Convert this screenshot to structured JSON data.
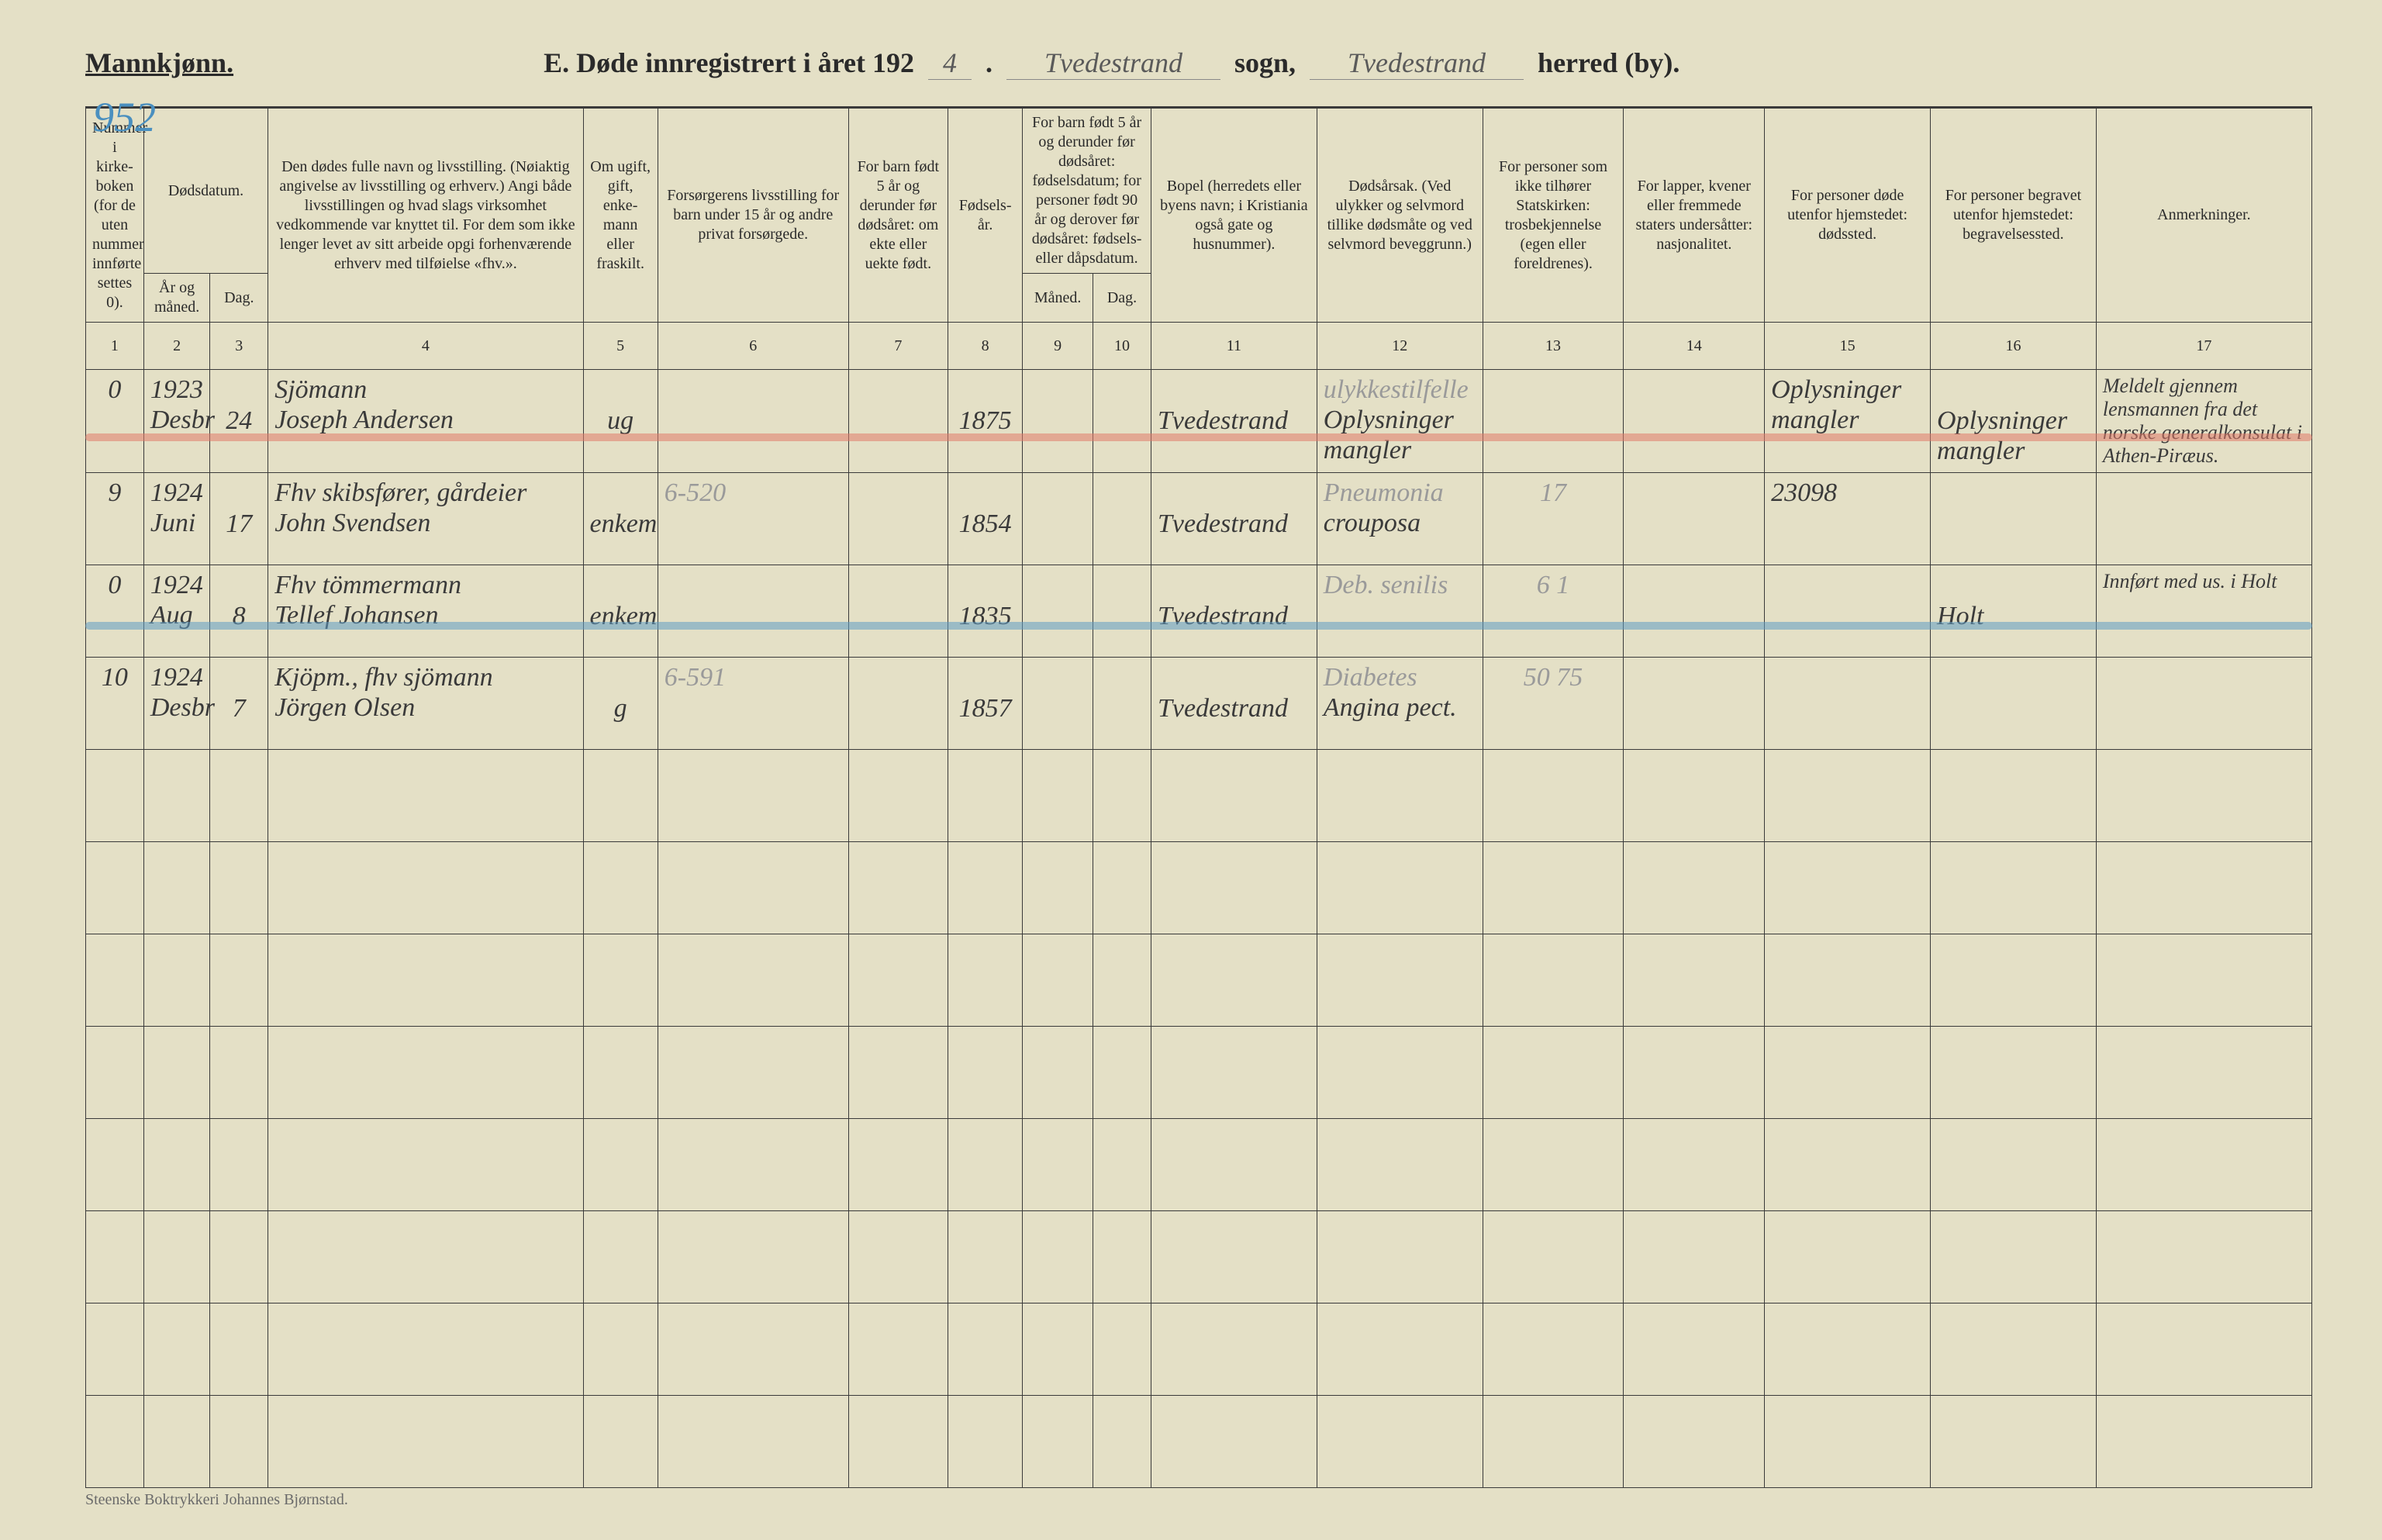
{
  "header": {
    "gender_label": "Mannkjønn.",
    "page_number": "952",
    "title_prefix": "E.  Døde innregistrert i året 192",
    "year_suffix": "4",
    "sogn_value": "Tvedestrand",
    "sogn_label": "sogn,",
    "herred_value": "Tvedestrand",
    "herred_label": "herred (by)."
  },
  "columns": {
    "c1": "Nummer i kirke­boken (for de uten nummer innførte settes 0).",
    "c2a": "Dødsdatum.",
    "c2b": "År og måned.",
    "c3": "Dag.",
    "c4": "Den dødes fulle navn og livsstilling. (Nøiaktig angivelse av livsstilling og erhverv.) Angi både livsstillingen og hvad slags virksomhet vedkommende var knyttet til. For dem som ikke lenger levet av sitt arbeide opgi forhenværende erhverv med tilføielse «fhv.».",
    "c5": "Om ugift, gift, enke­mann eller fraskilt.",
    "c6": "Forsørgerens livsstilling for barn under 15 år og andre privat forsørgede.",
    "c7": "For barn født 5 år og derunder før døds­året: om ekte eller uekte født.",
    "c8": "Fødsels­år.",
    "c9_top": "For barn født 5 år og der­under før dødsåret: fødselsdatum; for personer født 90 år og derover før dødsåret: fødsels- eller dåpsdatum.",
    "c9": "Måned.",
    "c10": "Dag.",
    "c11": "Bopel (herredets eller byens navn; i Kristiania også gate og husnummer).",
    "c12": "Dødsårsak. (Ved ulykker og selv­mord tillike dødsmåte og ved selvmord beveggrunn.)",
    "c13": "For personer som ikke tilhører Statskirken: trosbekjennelse (egen eller foreldrenes).",
    "c14": "For lapper, kvener eller fremmede staters undersåtter: nasjonalitet.",
    "c15": "For personer døde utenfor hjemstedet: dødssted.",
    "c16": "For personer begravet utenfor hjemstedet: begravelsessted.",
    "c17": "Anmerkninger."
  },
  "colnums": [
    "1",
    "2",
    "3",
    "4",
    "5",
    "6",
    "7",
    "8",
    "9",
    "10",
    "11",
    "12",
    "13",
    "14",
    "15",
    "16",
    "17"
  ],
  "rows": [
    {
      "num": "0",
      "year_line": "1923",
      "month": "Desbr",
      "day": "24",
      "occupation": "Sjömann",
      "name": "Joseph Andersen",
      "marital": "ug",
      "provider": "",
      "c7": "",
      "birthyear": "1875",
      "c9": "",
      "c10": "",
      "bopel": "Tvedestrand",
      "cause_line1": "ulykkestilfelle",
      "cause_line2": "Oplysninger mangler",
      "c13": "",
      "c14": "",
      "c15": "Oplysninger mangler",
      "c16": "Oplysninger mangler",
      "c17": "Meldelt gjennem lensmannen fra det norske generalkonsulat i Athen-Piræus.",
      "strike": "red"
    },
    {
      "num": "9",
      "year_line": "1924",
      "month": "Juni",
      "day": "17",
      "occupation": "Fhv skibsfører, gårdeier",
      "name": "John Svendsen",
      "marital": "enkem",
      "provider": "6-520",
      "c7": "",
      "birthyear": "1854",
      "c9": "",
      "c10": "",
      "bopel": "Tvedestrand",
      "cause_line1": "Pneumonia",
      "cause_line2": "crouposa",
      "c13": "17",
      "c14": "",
      "c15": "23098",
      "c16": "",
      "c17": "",
      "strike": ""
    },
    {
      "num": "0",
      "year_line": "1924",
      "month": "Aug",
      "day": "8",
      "occupation": "Fhv tömmermann",
      "name": "Tellef Johansen",
      "marital": "enkem",
      "provider": "",
      "c7": "",
      "birthyear": "1835",
      "c9": "",
      "c10": "",
      "bopel": "Tvedestrand",
      "cause_line1": "Deb. senilis",
      "cause_line2": "",
      "c13": "6   1",
      "c14": "",
      "c15": "",
      "c16": "Holt",
      "c17": "Innført med us. i Holt",
      "strike": "blue"
    },
    {
      "num": "10",
      "year_line": "1924",
      "month": "Desbr",
      "day": "7",
      "occupation": "Kjöpm., fhv sjömann",
      "name": "Jörgen Olsen",
      "marital": "g",
      "provider": "6-591",
      "c7": "",
      "birthyear": "1857",
      "c9": "",
      "c10": "",
      "bopel": "Tvedestrand",
      "cause_line1": "Diabetes",
      "cause_line2": "Angina pect.",
      "c13": "50  75",
      "c14": "",
      "c15": "",
      "c16": "",
      "c17": "",
      "strike": ""
    }
  ],
  "empty_rows": 8,
  "footer": "Steenske Boktrykkeri Johannes Bjørnstad.",
  "colors": {
    "paper": "#e4e0c6",
    "ink": "#2a2a2a",
    "pencil_blue": "#4a8fbf",
    "strike_red": "#e07a6a",
    "strike_blue": "#5f9cc4"
  }
}
